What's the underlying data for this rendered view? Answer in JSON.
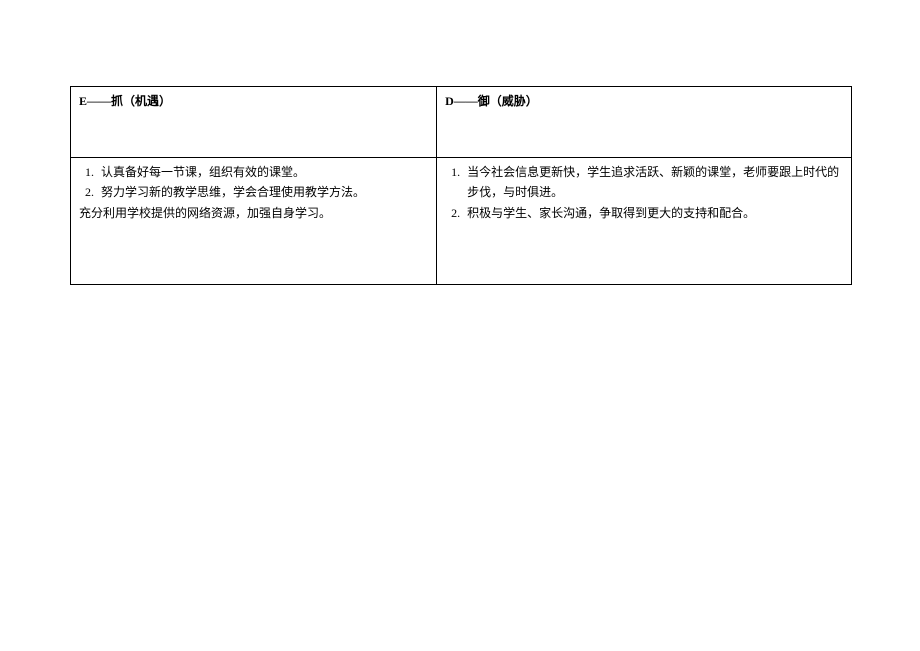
{
  "table": {
    "header": {
      "left": "E——抓（机遇）",
      "right": "D——御（威胁）"
    },
    "content": {
      "left": {
        "item1": "认真备好每一节课，组织有效的课堂。",
        "item2": "努力学习新的教学思维，学会合理使用教学方法。",
        "extra": "充分利用学校提供的网络资源，加强自身学习。"
      },
      "right": {
        "item1": "当今社会信息更新快，学生追求活跃、新颖的课堂，老师要跟上时代的步伐，与时俱进。",
        "item2": "积极与学生、家长沟通，争取得到更大的支持和配合。"
      }
    },
    "styling": {
      "border_color": "#000000",
      "background_color": "#ffffff",
      "font_size": 12,
      "header_font_weight": "bold"
    }
  }
}
